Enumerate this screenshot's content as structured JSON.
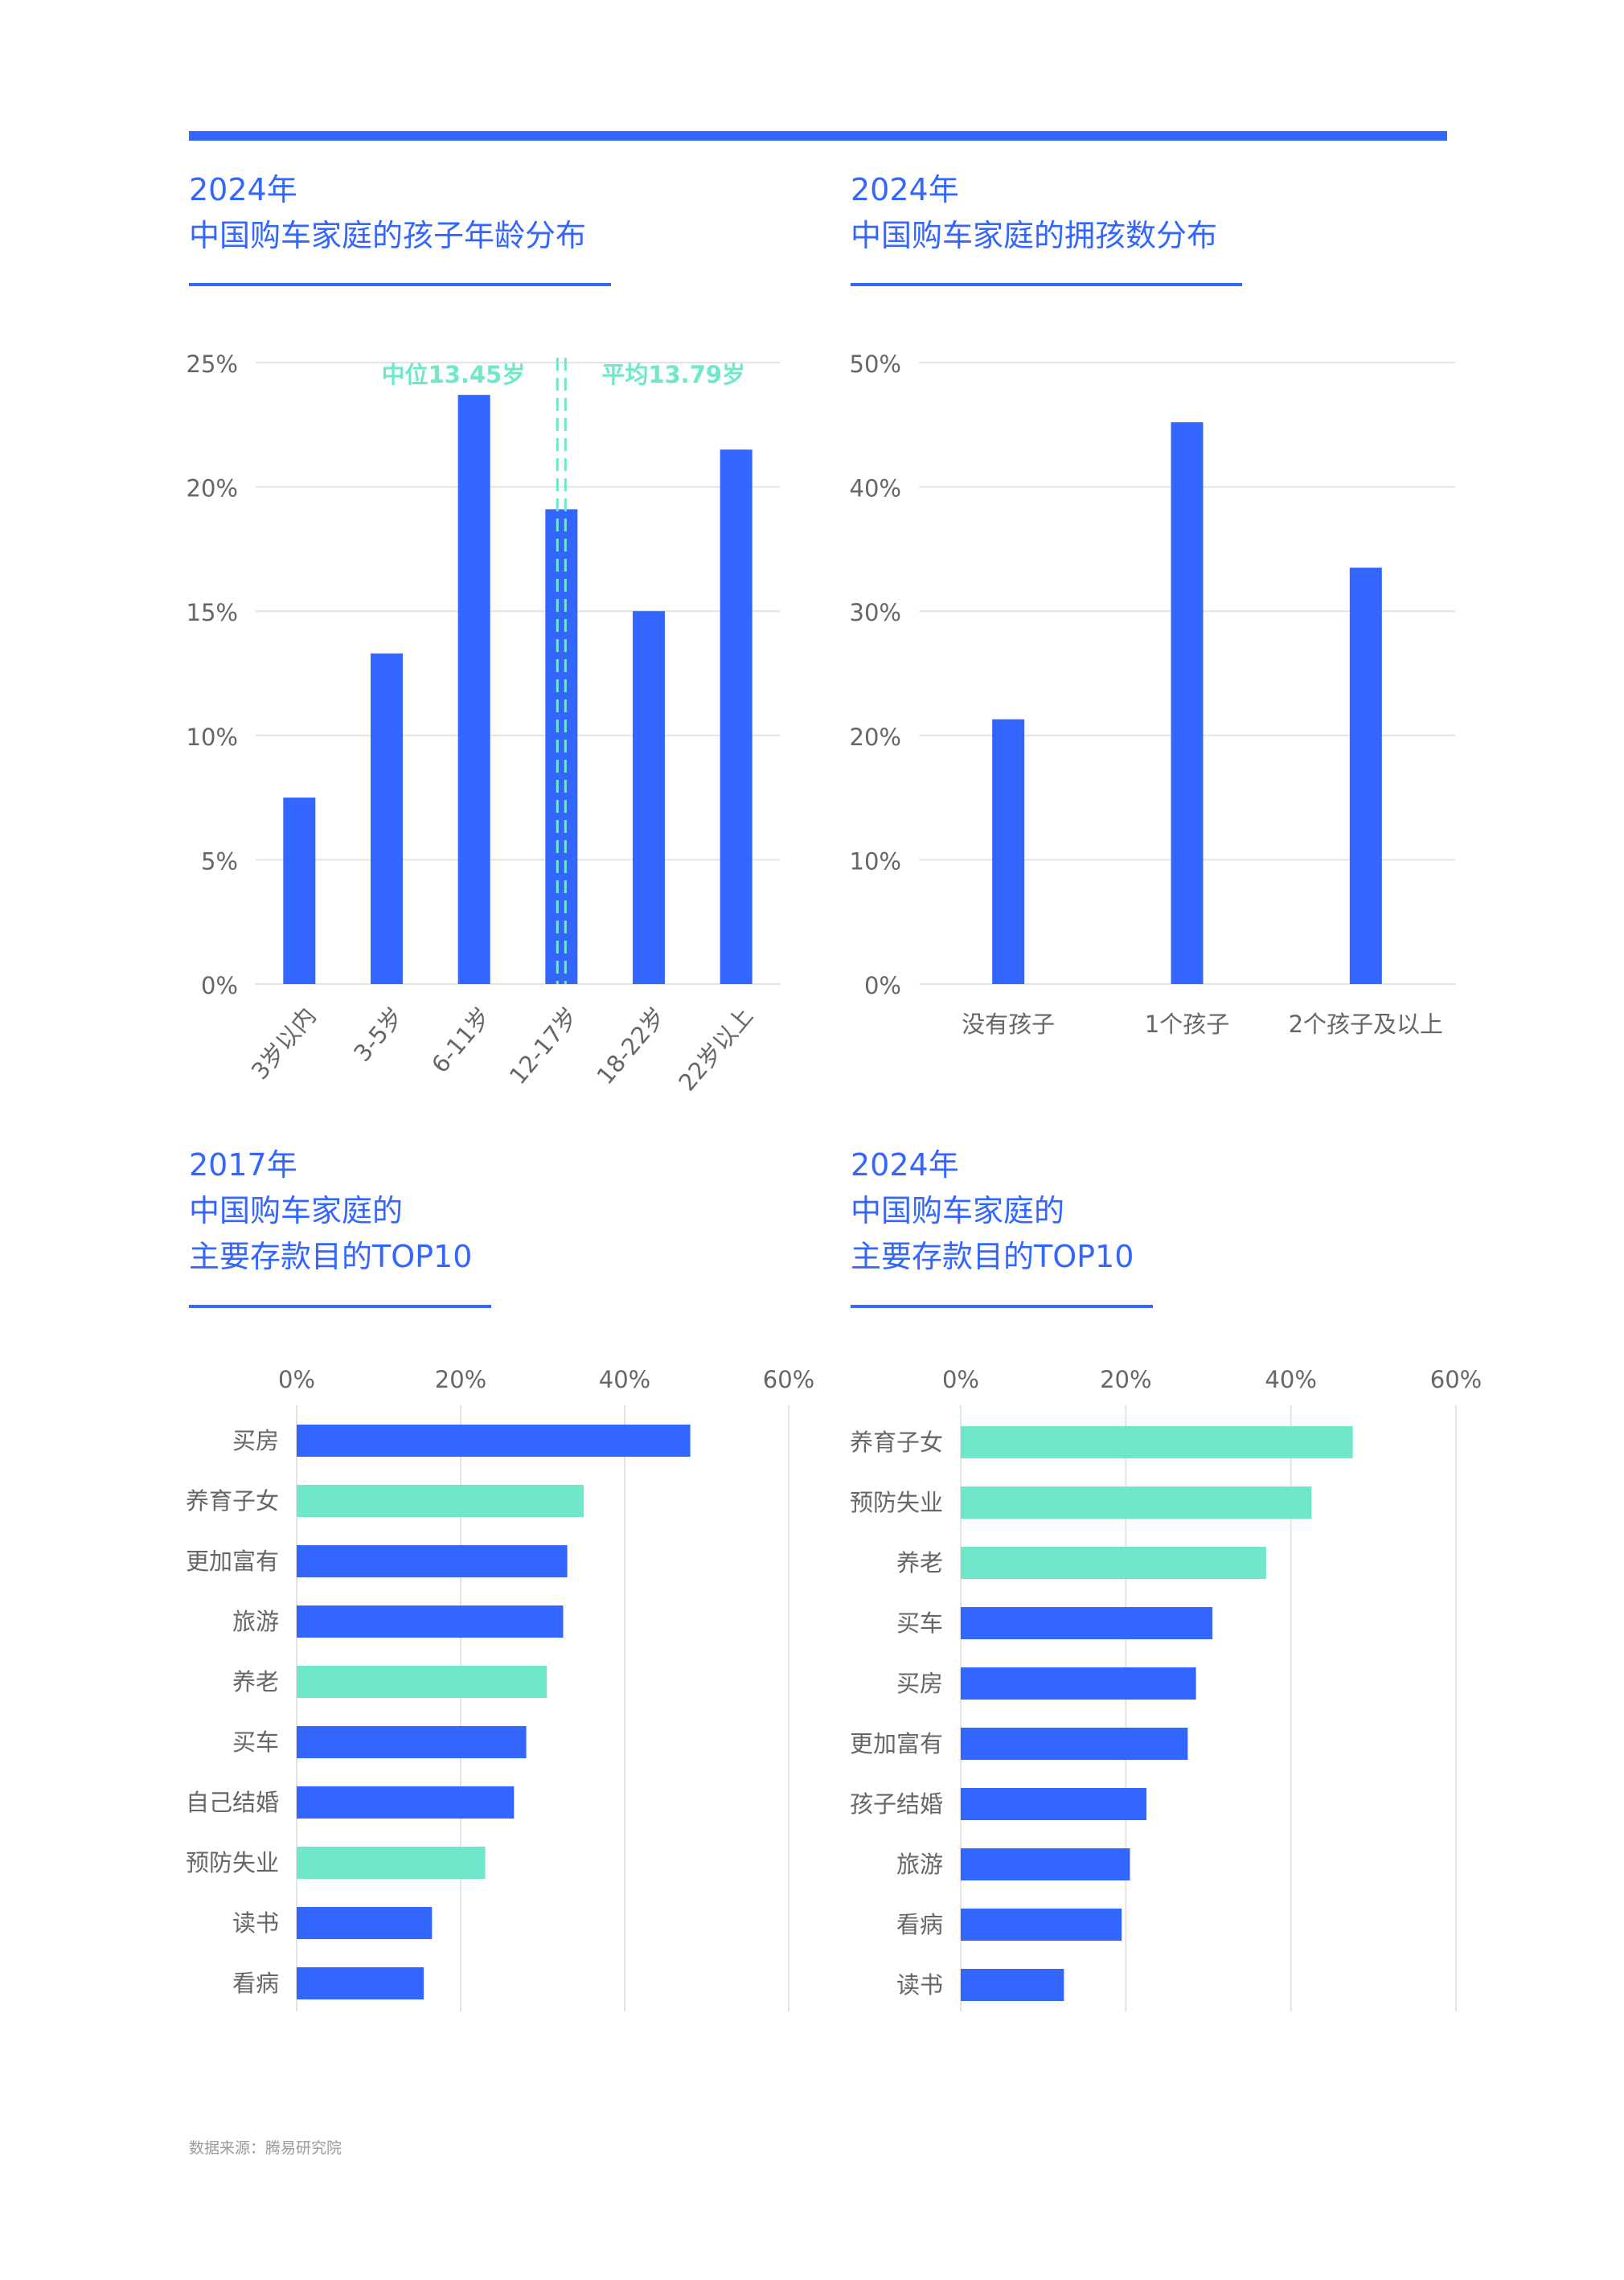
{
  "colors": {
    "primary": "#3366ff",
    "accent": "#6ee8c9",
    "grid": "#e3e3e3",
    "axis_text": "#666666",
    "title": "#3366ff"
  },
  "panels": {
    "age": {
      "line1": "2024年",
      "line2": "中国购车家庭的孩子年龄分布"
    },
    "count": {
      "line1": "2024年",
      "line2": "中国购车家庭的拥孩数分布"
    },
    "savings2017": {
      "line1": "2017年",
      "line2": "中国购车家庭的",
      "line3": "主要存款目的TOP10"
    },
    "savings2024": {
      "line1": "2024年",
      "line2": "中国购车家庭的",
      "line3": "主要存款目的TOP10"
    }
  },
  "source": "数据来源：腾易研究院",
  "chart_data": [
    {
      "id": "age",
      "type": "bar",
      "title": "2024年 中国购车家庭的孩子年龄分布",
      "categories": [
        "3岁以内",
        "3-5岁",
        "6-11岁",
        "12-17岁",
        "18-22岁",
        "22岁以上"
      ],
      "values": [
        7.5,
        13.3,
        23.7,
        19.1,
        15.0,
        21.5
      ],
      "ylim": [
        0,
        25
      ],
      "yticks": [
        "0%",
        "5%",
        "10%",
        "15%",
        "20%",
        "25%"
      ],
      "grid": true,
      "annotations": [
        {
          "label": "中位13.45岁",
          "category_index": 3
        },
        {
          "label": "平均13.79岁",
          "category_index": 3
        }
      ]
    },
    {
      "id": "count",
      "type": "bar",
      "title": "2024年 中国购车家庭的拥孩数分布",
      "categories": [
        "没有孩子",
        "1个孩子",
        "2个孩子及以上"
      ],
      "values": [
        21.3,
        45.2,
        33.5
      ],
      "ylim": [
        0,
        50
      ],
      "yticks": [
        "0%",
        "10%",
        "20%",
        "30%",
        "40%",
        "50%"
      ],
      "grid": true
    },
    {
      "id": "savings2017",
      "type": "bar",
      "orientation": "horizontal",
      "title": "2017年 中国购车家庭的主要存款目的TOP10",
      "categories": [
        "买房",
        "养育子女",
        "更加富有",
        "旅游",
        "养老",
        "买车",
        "自己结婚",
        "预防失业",
        "读书",
        "看病"
      ],
      "values": [
        48.0,
        35.0,
        33.0,
        32.5,
        30.5,
        28.0,
        26.5,
        23.0,
        16.5,
        15.5
      ],
      "highlight": [
        false,
        true,
        false,
        false,
        true,
        false,
        false,
        true,
        false,
        false
      ],
      "xlim": [
        0,
        60
      ],
      "xticks": [
        "0%",
        "20%",
        "40%",
        "60%"
      ],
      "grid": true
    },
    {
      "id": "savings2024",
      "type": "bar",
      "orientation": "horizontal",
      "title": "2024年 中国购车家庭的主要存款目的TOP10",
      "categories": [
        "养育子女",
        "预防失业",
        "养老",
        "买车",
        "买房",
        "更加富有",
        "孩子结婚",
        "旅游",
        "看病",
        "读书"
      ],
      "values": [
        47.5,
        42.5,
        37.0,
        30.5,
        28.5,
        27.5,
        22.5,
        20.5,
        19.5,
        12.5
      ],
      "highlight": [
        true,
        true,
        true,
        false,
        false,
        false,
        false,
        false,
        false,
        false
      ],
      "xlim": [
        0,
        60
      ],
      "xticks": [
        "0%",
        "20%",
        "40%",
        "60%"
      ],
      "grid": true
    }
  ]
}
